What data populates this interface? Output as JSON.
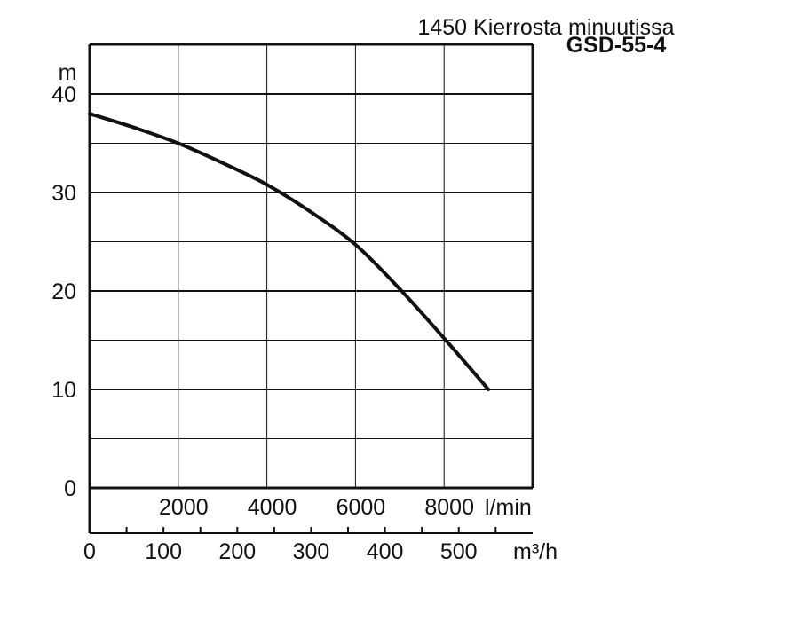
{
  "chart_data": {
    "type": "line",
    "title": "1450 Kierrosta minuutissa",
    "subtitle": "GSD-55-4",
    "ylabel": "m",
    "ylim": [
      0,
      45
    ],
    "yticks": [
      "0",
      "10",
      "20",
      "30",
      "40"
    ],
    "xlim_lmin": [
      0,
      10000
    ],
    "xticks_lmin": [
      "2000",
      "4000",
      "6000",
      "8000"
    ],
    "xunit_lmin": "l/min",
    "xlim_m3h": [
      0,
      600
    ],
    "xticks_m3h": [
      "0",
      "100",
      "200",
      "300",
      "400",
      "500"
    ],
    "xunit_m3h": "m³/h",
    "grid": true,
    "series": [
      {
        "x": [
          0,
          1000,
          2000,
          3000,
          4000,
          5000,
          6000,
          7000,
          8000,
          9000
        ],
        "y": [
          38,
          36.6,
          35,
          33,
          30.8,
          28,
          24.7,
          20.2,
          15.2,
          10
        ]
      }
    ]
  }
}
